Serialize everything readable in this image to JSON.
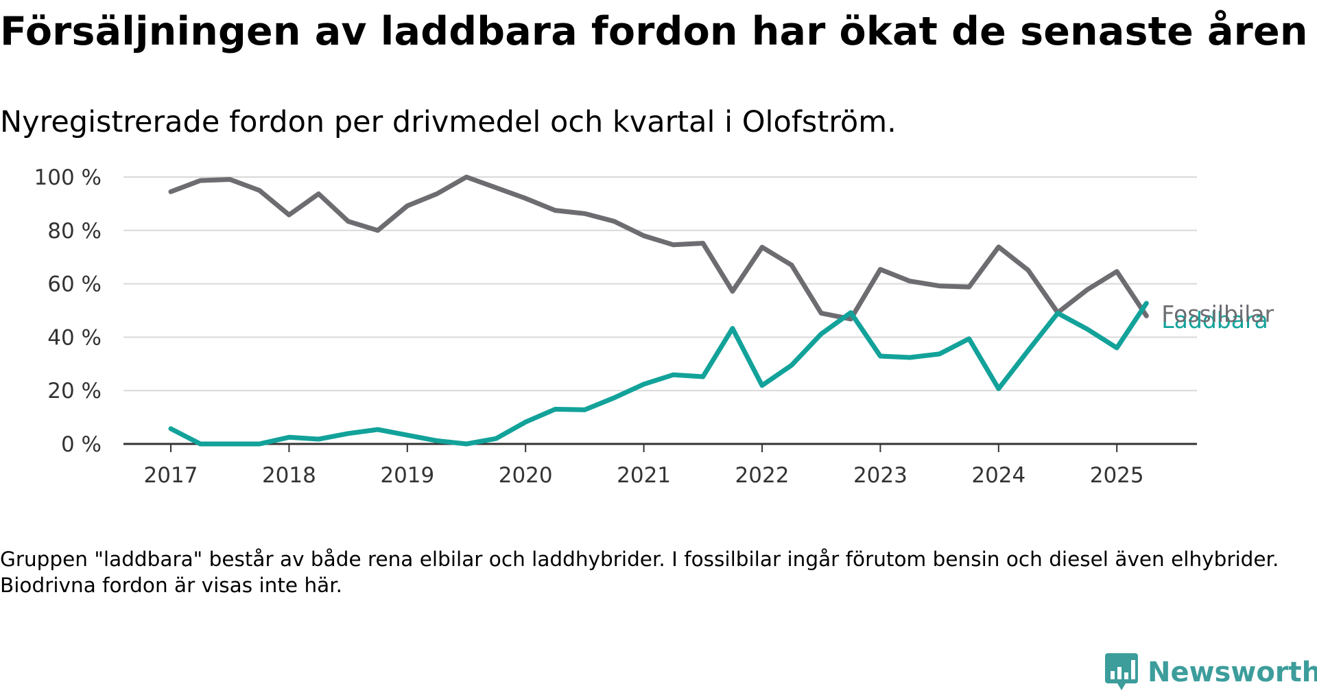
{
  "title": "Försäljningen av laddbara fordon har ökat de senaste åren",
  "subtitle": "Nyregistrerade fordon per drivmedel och kvartal i Olofström.",
  "note": "Gruppen \"laddbara\" består av både rena elbilar och laddhybrider. I fossilbilar ingår förutom bensin och diesel även elhybrider. Biodrivna fordon är visas inte här.",
  "logo": {
    "text": "Newsworthy",
    "color": "#3c9d9b",
    "icon": "bar-chart-bubble-icon"
  },
  "chart_data": {
    "type": "line",
    "title": "Försäljningen av laddbara fordon har ökat de senaste åren",
    "subtitle": "Nyregistrerade fordon per drivmedel och kvartal i Olofström.",
    "xlabel": "",
    "ylabel": "",
    "ylim": [
      0,
      100
    ],
    "y_ticks": [
      "0 %",
      "20 %",
      "40 %",
      "60 %",
      "80 %",
      "100 %"
    ],
    "x_ticks": [
      "2017",
      "2018",
      "2019",
      "2020",
      "2021",
      "2022",
      "2023",
      "2024",
      "2025"
    ],
    "grid": true,
    "x": [
      "2017-Q1",
      "2017-Q2",
      "2017-Q3",
      "2017-Q4",
      "2018-Q1",
      "2018-Q2",
      "2018-Q3",
      "2018-Q4",
      "2019-Q1",
      "2019-Q2",
      "2019-Q3",
      "2019-Q4",
      "2020-Q1",
      "2020-Q2",
      "2020-Q3",
      "2020-Q4",
      "2021-Q1",
      "2021-Q2",
      "2021-Q3",
      "2021-Q4",
      "2022-Q1",
      "2022-Q2",
      "2022-Q3",
      "2022-Q4",
      "2023-Q1",
      "2023-Q2",
      "2023-Q3",
      "2023-Q4",
      "2024-Q1",
      "2024-Q2",
      "2024-Q3",
      "2024-Q4",
      "2025-Q1",
      "2025-Q2"
    ],
    "series": [
      {
        "name": "Fossilbilar",
        "color": "#6d6c71",
        "values": [
          94.5,
          98.7,
          99.1,
          95.0,
          85.8,
          93.7,
          83.4,
          80.0,
          89.2,
          93.7,
          100.0,
          96.0,
          92.0,
          87.5,
          86.3,
          83.4,
          78.0,
          74.6,
          75.2,
          57.2,
          73.7,
          67.0,
          49.0,
          46.8,
          65.4,
          61.0,
          59.2,
          58.8,
          73.8,
          65.1,
          49.2,
          57.8,
          64.6,
          48.0
        ]
      },
      {
        "name": "Laddbara",
        "color": "#12a29a",
        "values": [
          5.7,
          0.0,
          0.0,
          0.0,
          2.5,
          1.8,
          3.9,
          5.4,
          3.3,
          1.2,
          0.0,
          2.0,
          8.2,
          13.0,
          12.8,
          17.3,
          22.4,
          25.9,
          25.2,
          43.3,
          21.9,
          29.5,
          41.2,
          49.2,
          32.9,
          32.4,
          33.7,
          39.4,
          20.7,
          35.0,
          49.0,
          43.0,
          36.0,
          52.7
        ]
      }
    ]
  }
}
